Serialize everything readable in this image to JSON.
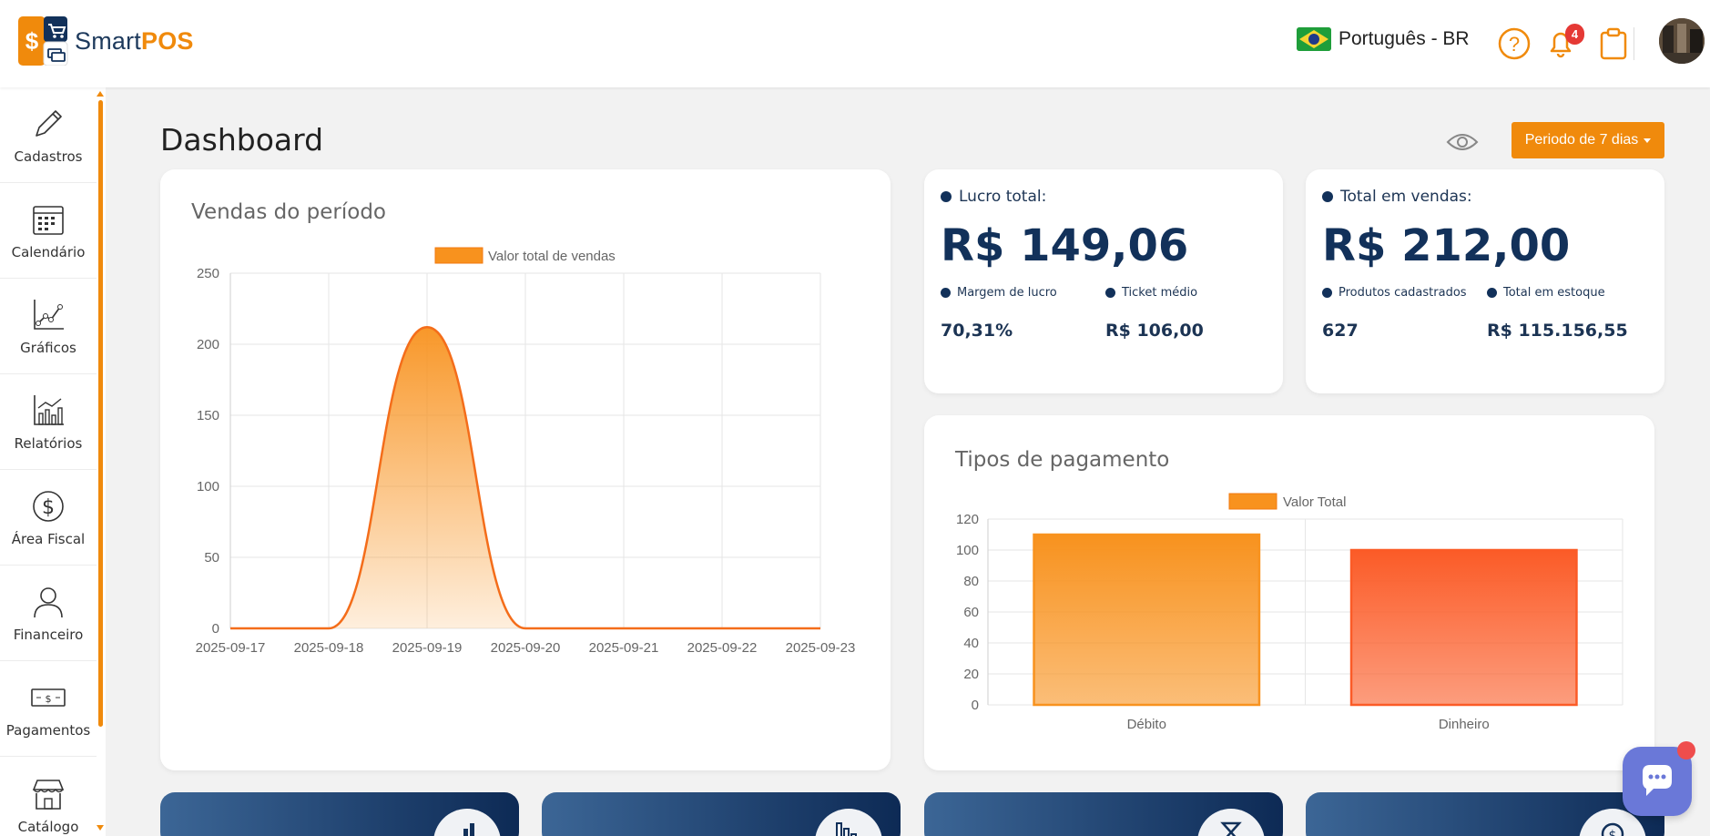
{
  "header": {
    "brand_light": "Smart",
    "brand_bold": "POS",
    "language": "Português - BR",
    "notifications_count": "4"
  },
  "sidebar": {
    "items": [
      {
        "label": "Cadastros",
        "icon": "pencil-icon"
      },
      {
        "label": "Calendário",
        "icon": "calendar-icon"
      },
      {
        "label": "Gráficos",
        "icon": "line-chart-icon"
      },
      {
        "label": "Relatórios",
        "icon": "bar-chart-icon"
      },
      {
        "label": "Área Fiscal",
        "icon": "dollar-circle-icon"
      },
      {
        "label": "Financeiro",
        "icon": "person-icon"
      },
      {
        "label": "Pagamentos",
        "icon": "banknote-icon"
      },
      {
        "label": "Catálogo",
        "icon": "store-icon"
      }
    ]
  },
  "main": {
    "title": "Dashboard",
    "period_button": "Periodo de 7 dias"
  },
  "stats": {
    "profit_label": "Lucro total:",
    "profit_value": "R$ 149,06",
    "margin_label": "Margem de lucro",
    "margin_value": "70,31%",
    "ticket_label": "Ticket médio",
    "ticket_value": "R$ 106,00",
    "sales_label": "Total em vendas:",
    "sales_value": "R$ 212,00",
    "products_label": "Produtos cadastrados",
    "products_value": "627",
    "stock_label": "Total em estoque",
    "stock_value": "R$ 115.156,55"
  },
  "colors": {
    "accent": "#f08a0c",
    "navy": "#12315a",
    "bar_debito": "#f8921e",
    "bar_dinheiro": "#fb5b27"
  },
  "chart_data": [
    {
      "type": "area",
      "title": "Vendas do período",
      "legend": [
        "Valor total de vendas"
      ],
      "x": [
        "2025-09-17",
        "2025-09-18",
        "2025-09-19",
        "2025-09-20",
        "2025-09-21",
        "2025-09-22",
        "2025-09-23"
      ],
      "series": [
        {
          "name": "Valor total de vendas",
          "values": [
            0,
            0,
            212,
            0,
            0,
            0,
            0
          ]
        }
      ],
      "ylim": [
        0,
        250
      ],
      "yticks": [
        0,
        50,
        100,
        150,
        200,
        250
      ],
      "grid": true,
      "legend_position": "top-center"
    },
    {
      "type": "bar",
      "title": "Tipos de pagamento",
      "legend": [
        "Valor Total"
      ],
      "categories": [
        "Débito",
        "Dinheiro"
      ],
      "series": [
        {
          "name": "Valor Total",
          "values": [
            110,
            100
          ]
        }
      ],
      "ylim": [
        0,
        120
      ],
      "yticks": [
        0,
        20,
        40,
        60,
        80,
        100,
        120
      ],
      "grid": true,
      "legend_position": "top-center"
    }
  ]
}
